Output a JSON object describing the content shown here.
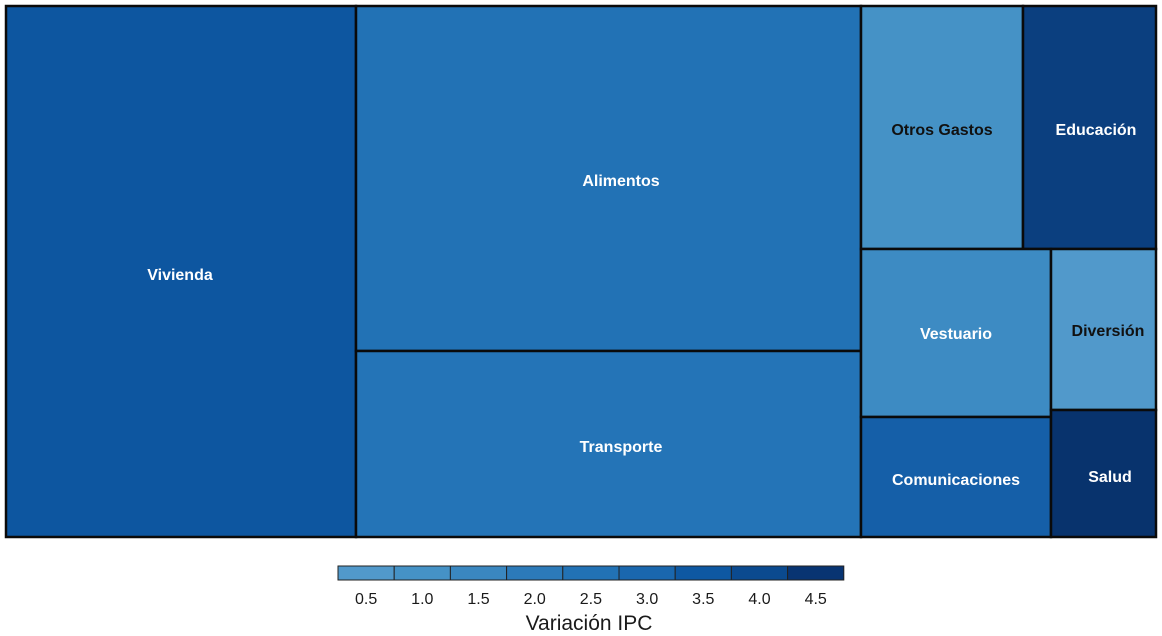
{
  "chart_data": {
    "type": "treemap",
    "color_metric": "Variación IPC",
    "tiles": [
      {
        "name": "Vivienda",
        "color": "#0d56a0"
      },
      {
        "name": "Alimentos",
        "color": "#2272b5"
      },
      {
        "name": "Transporte",
        "color": "#2474b7"
      },
      {
        "name": "Otros Gastos",
        "color": "#4592c6"
      },
      {
        "name": "Educación",
        "color": "#0b3f7f"
      },
      {
        "name": "Vestuario",
        "color": "#3d8bc3"
      },
      {
        "name": "Diversión",
        "color": "#5199cb"
      },
      {
        "name": "Comunicaciones",
        "color": "#155fa8"
      },
      {
        "name": "Salud",
        "color": "#08336d"
      }
    ],
    "legend": {
      "title": "Variación IPC",
      "ticks": [
        "0.5",
        "1.0",
        "1.5",
        "2.0",
        "2.5",
        "3.0",
        "3.5",
        "4.0",
        "4.5"
      ],
      "colors": [
        "#5199cb",
        "#4592c6",
        "#3a87c0",
        "#2c7ab9",
        "#2272b5",
        "#1a67ae",
        "#0e58a2",
        "#0b4a8f",
        "#083472"
      ]
    }
  }
}
